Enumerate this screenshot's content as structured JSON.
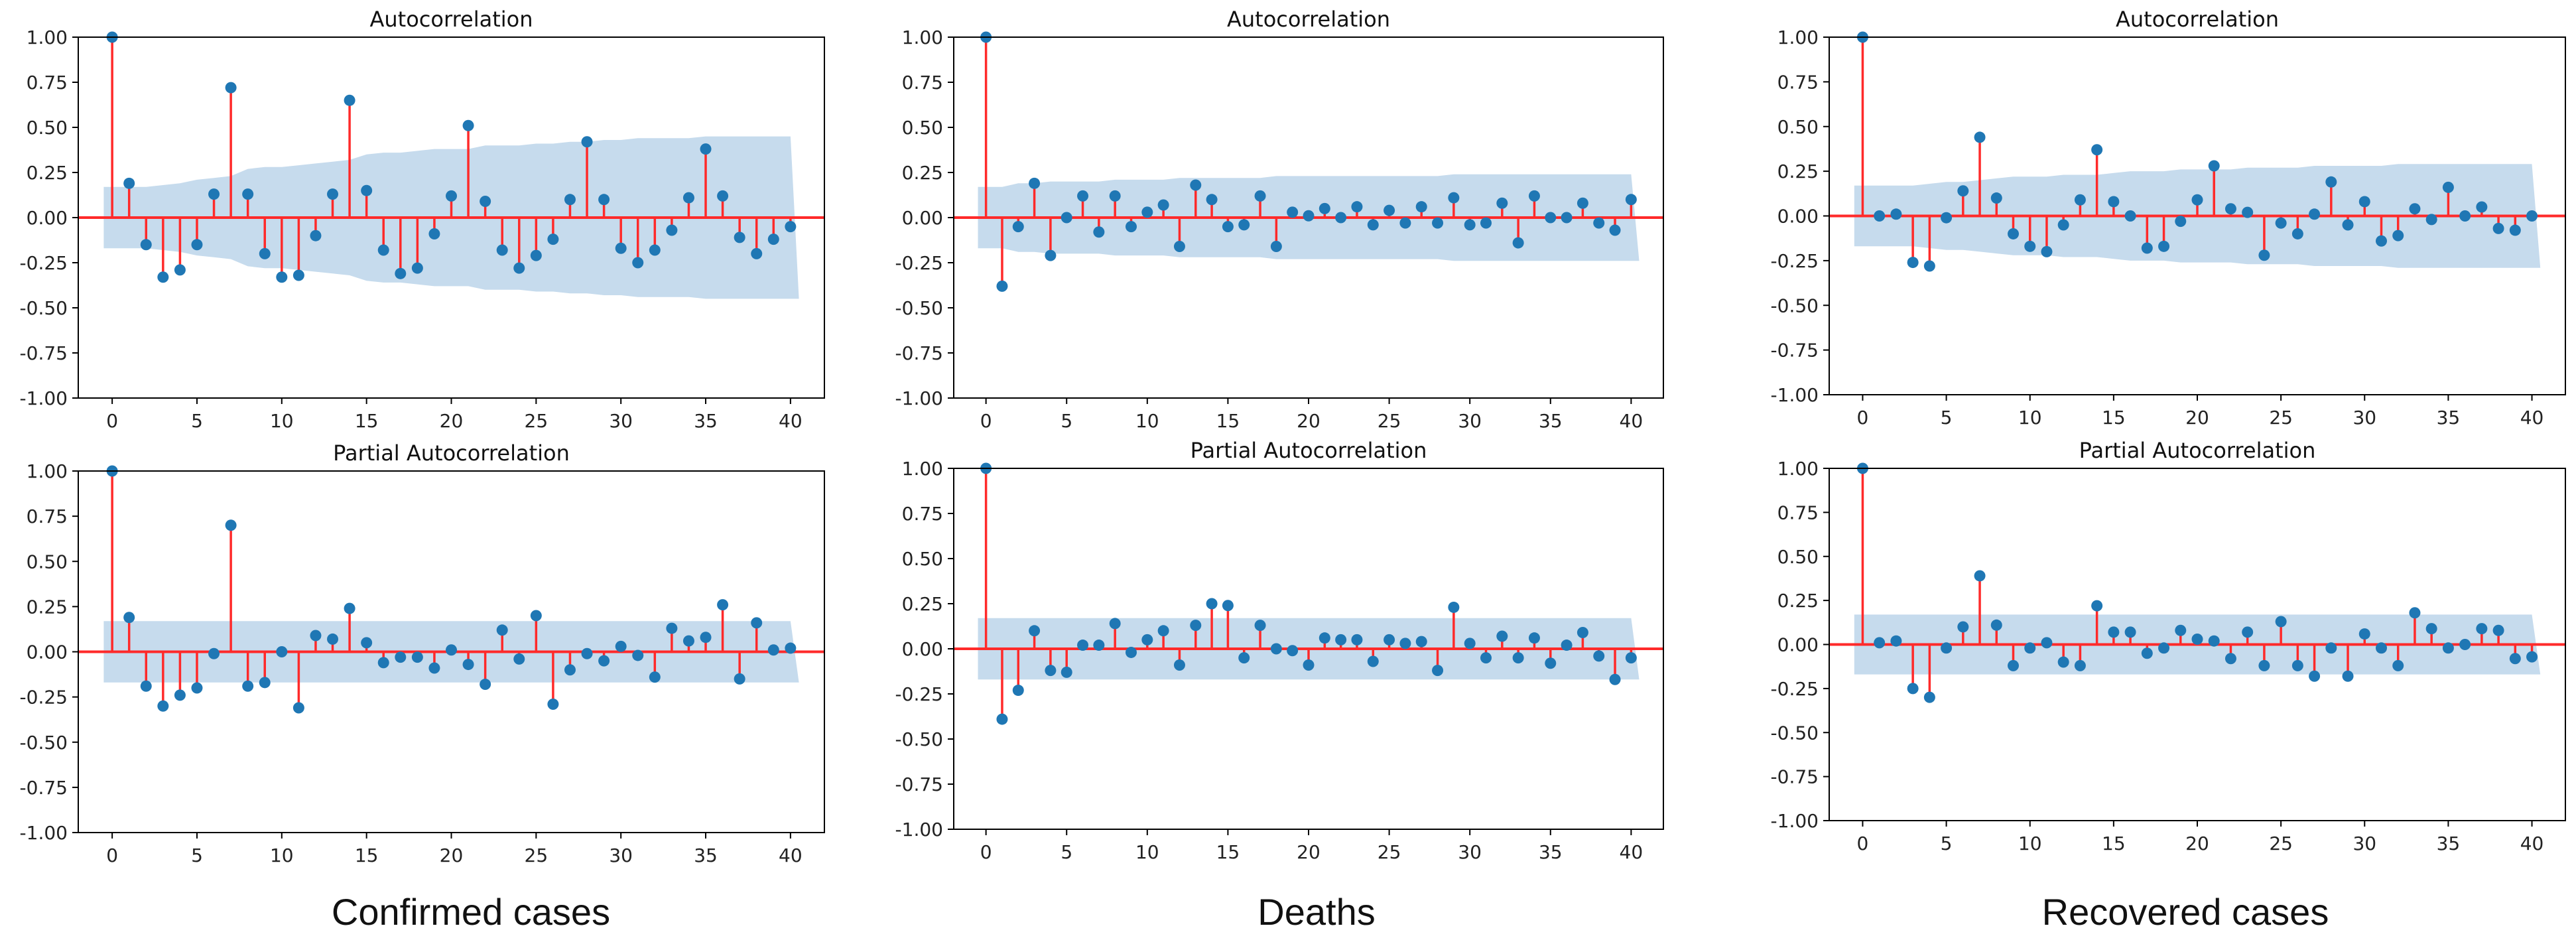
{
  "figure": {
    "columns": [
      "Confirmed cases",
      "Deaths",
      "Recovered cases"
    ]
  },
  "colors": {
    "stem": "#ff2a2a",
    "marker": "#1f77b4",
    "band": "#c6dbed",
    "axis": "#000000",
    "baseline": "#ff2a2a"
  },
  "chart_data": [
    {
      "type": "stem",
      "id": "confirmed-acf",
      "column": "Confirmed cases",
      "title": "Autocorrelation",
      "x": [
        0,
        1,
        2,
        3,
        4,
        5,
        6,
        7,
        8,
        9,
        10,
        11,
        12,
        13,
        14,
        15,
        16,
        17,
        18,
        19,
        20,
        21,
        22,
        23,
        24,
        25,
        26,
        27,
        28,
        29,
        30,
        31,
        32,
        33,
        34,
        35,
        36,
        37,
        38,
        39,
        40
      ],
      "values": [
        1.0,
        0.19,
        -0.15,
        -0.33,
        -0.29,
        -0.15,
        0.13,
        0.72,
        0.13,
        -0.2,
        -0.33,
        -0.32,
        -0.1,
        0.13,
        0.65,
        0.15,
        -0.18,
        -0.31,
        -0.28,
        -0.09,
        0.12,
        0.51,
        0.09,
        -0.18,
        -0.28,
        -0.21,
        -0.12,
        0.1,
        0.42,
        0.1,
        -0.17,
        -0.25,
        -0.18,
        -0.07,
        0.11,
        0.38,
        0.12,
        -0.11,
        -0.2,
        -0.12,
        -0.05
      ],
      "ci_upper": [
        0.17,
        0.17,
        0.17,
        0.18,
        0.19,
        0.21,
        0.22,
        0.23,
        0.27,
        0.28,
        0.28,
        0.29,
        0.3,
        0.31,
        0.32,
        0.35,
        0.36,
        0.36,
        0.37,
        0.38,
        0.38,
        0.38,
        0.4,
        0.4,
        0.4,
        0.41,
        0.41,
        0.42,
        0.42,
        0.43,
        0.43,
        0.44,
        0.44,
        0.44,
        0.44,
        0.45,
        0.45,
        0.45,
        0.45,
        0.45,
        0.45
      ],
      "xlim": [
        -2,
        42
      ],
      "ylim": [
        -1.0,
        1.0
      ],
      "xticks": [
        0,
        5,
        10,
        15,
        20,
        25,
        30,
        35,
        40
      ],
      "yticks": [
        "-1.00",
        "-0.75",
        "-0.50",
        "-0.25",
        "0.00",
        "0.25",
        "0.50",
        "0.75",
        "1.00"
      ]
    },
    {
      "type": "stem",
      "id": "deaths-acf",
      "column": "Deaths",
      "title": "Autocorrelation",
      "x": [
        0,
        1,
        2,
        3,
        4,
        5,
        6,
        7,
        8,
        9,
        10,
        11,
        12,
        13,
        14,
        15,
        16,
        17,
        18,
        19,
        20,
        21,
        22,
        23,
        24,
        25,
        26,
        27,
        28,
        29,
        30,
        31,
        32,
        33,
        34,
        35,
        36,
        37,
        38,
        39,
        40
      ],
      "values": [
        1.0,
        -0.38,
        -0.05,
        0.19,
        -0.21,
        0.0,
        0.12,
        -0.08,
        0.12,
        -0.05,
        0.03,
        0.07,
        -0.16,
        0.18,
        0.1,
        -0.05,
        -0.04,
        0.12,
        -0.16,
        0.03,
        0.01,
        0.05,
        0.0,
        0.06,
        -0.04,
        0.04,
        -0.03,
        0.06,
        -0.03,
        0.11,
        -0.04,
        -0.03,
        0.08,
        -0.14,
        0.12,
        0.0,
        0.0,
        0.08,
        -0.03,
        -0.07,
        0.1
      ],
      "ci_upper": [
        0.17,
        0.17,
        0.19,
        0.19,
        0.2,
        0.2,
        0.2,
        0.2,
        0.21,
        0.21,
        0.21,
        0.21,
        0.22,
        0.22,
        0.22,
        0.22,
        0.22,
        0.22,
        0.23,
        0.23,
        0.23,
        0.23,
        0.23,
        0.23,
        0.23,
        0.23,
        0.23,
        0.23,
        0.23,
        0.24,
        0.24,
        0.24,
        0.24,
        0.24,
        0.24,
        0.24,
        0.24,
        0.24,
        0.24,
        0.24,
        0.24
      ],
      "xlim": [
        -2,
        42
      ],
      "ylim": [
        -1.0,
        1.0
      ],
      "xticks": [
        0,
        5,
        10,
        15,
        20,
        25,
        30,
        35,
        40
      ],
      "yticks": [
        "-1.00",
        "-0.75",
        "-0.50",
        "-0.25",
        "0.00",
        "0.25",
        "0.50",
        "0.75",
        "1.00"
      ]
    },
    {
      "type": "stem",
      "id": "recovered-acf",
      "column": "Recovered cases",
      "title": "Autocorrelation",
      "x": [
        0,
        1,
        2,
        3,
        4,
        5,
        6,
        7,
        8,
        9,
        10,
        11,
        12,
        13,
        14,
        15,
        16,
        17,
        18,
        19,
        20,
        21,
        22,
        23,
        24,
        25,
        26,
        27,
        28,
        29,
        30,
        31,
        32,
        33,
        34,
        35,
        36,
        37,
        38,
        39,
        40
      ],
      "values": [
        1.0,
        0.0,
        0.01,
        -0.26,
        -0.28,
        -0.01,
        0.14,
        0.44,
        0.1,
        -0.1,
        -0.17,
        -0.2,
        -0.05,
        0.09,
        0.37,
        0.08,
        0.0,
        -0.18,
        -0.17,
        -0.03,
        0.09,
        0.28,
        0.04,
        0.02,
        -0.22,
        -0.04,
        -0.1,
        0.01,
        0.19,
        -0.05,
        0.08,
        -0.14,
        -0.11,
        0.04,
        -0.02,
        0.16,
        0.0,
        0.05,
        -0.07,
        -0.08,
        0.0
      ],
      "ci_upper": [
        0.17,
        0.17,
        0.17,
        0.17,
        0.18,
        0.19,
        0.19,
        0.2,
        0.21,
        0.22,
        0.22,
        0.22,
        0.23,
        0.23,
        0.23,
        0.24,
        0.25,
        0.25,
        0.25,
        0.26,
        0.26,
        0.26,
        0.26,
        0.27,
        0.27,
        0.27,
        0.27,
        0.28,
        0.28,
        0.28,
        0.28,
        0.28,
        0.29,
        0.29,
        0.29,
        0.29,
        0.29,
        0.29,
        0.29,
        0.29,
        0.29
      ],
      "xlim": [
        -2,
        42
      ],
      "ylim": [
        -1.0,
        1.0
      ],
      "xticks": [
        0,
        5,
        10,
        15,
        20,
        25,
        30,
        35,
        40
      ],
      "yticks": [
        "-1.00",
        "-0.75",
        "-0.50",
        "-0.25",
        "0.00",
        "0.25",
        "0.50",
        "0.75",
        "1.00"
      ]
    },
    {
      "type": "stem",
      "id": "confirmed-pacf",
      "column": "Confirmed cases",
      "title": "Partial Autocorrelation",
      "x": [
        0,
        1,
        2,
        3,
        4,
        5,
        6,
        7,
        8,
        9,
        10,
        11,
        12,
        13,
        14,
        15,
        16,
        17,
        18,
        19,
        20,
        21,
        22,
        23,
        24,
        25,
        26,
        27,
        28,
        29,
        30,
        31,
        32,
        33,
        34,
        35,
        36,
        37,
        38,
        39,
        40
      ],
      "values": [
        1.0,
        0.19,
        -0.19,
        -0.3,
        -0.24,
        -0.2,
        -0.01,
        0.7,
        -0.19,
        -0.17,
        0.0,
        -0.31,
        0.09,
        0.07,
        0.24,
        0.05,
        -0.06,
        -0.03,
        -0.03,
        -0.09,
        0.01,
        -0.07,
        -0.18,
        0.12,
        -0.04,
        0.2,
        -0.29,
        -0.1,
        -0.01,
        -0.05,
        0.03,
        -0.02,
        -0.14,
        0.13,
        0.06,
        0.08,
        0.26,
        -0.15,
        0.16,
        0.01,
        0.02
      ],
      "ci_upper": 0.17,
      "xlim": [
        -2,
        42
      ],
      "ylim": [
        -1.0,
        1.0
      ],
      "xticks": [
        0,
        5,
        10,
        15,
        20,
        25,
        30,
        35,
        40
      ],
      "yticks": [
        "-1.00",
        "-0.75",
        "-0.50",
        "-0.25",
        "0.00",
        "0.25",
        "0.50",
        "0.75",
        "1.00"
      ]
    },
    {
      "type": "stem",
      "id": "deaths-pacf",
      "column": "Deaths",
      "title": "Partial Autocorrelation",
      "x": [
        0,
        1,
        2,
        3,
        4,
        5,
        6,
        7,
        8,
        9,
        10,
        11,
        12,
        13,
        14,
        15,
        16,
        17,
        18,
        19,
        20,
        21,
        22,
        23,
        24,
        25,
        26,
        27,
        28,
        29,
        30,
        31,
        32,
        33,
        34,
        35,
        36,
        37,
        38,
        39,
        40
      ],
      "values": [
        1.0,
        -0.39,
        -0.23,
        0.1,
        -0.12,
        -0.13,
        0.02,
        0.02,
        0.14,
        -0.02,
        0.05,
        0.1,
        -0.09,
        0.13,
        0.25,
        0.24,
        -0.05,
        0.13,
        0.0,
        -0.01,
        -0.09,
        0.06,
        0.05,
        0.05,
        -0.07,
        0.05,
        0.03,
        0.04,
        -0.12,
        0.23,
        0.03,
        -0.05,
        0.07,
        -0.05,
        0.06,
        -0.08,
        0.02,
        0.09,
        -0.04,
        -0.17,
        -0.05
      ],
      "ci_upper": 0.17,
      "xlim": [
        -2,
        42
      ],
      "ylim": [
        -1.0,
        1.0
      ],
      "xticks": [
        0,
        5,
        10,
        15,
        20,
        25,
        30,
        35,
        40
      ],
      "yticks": [
        "-1.00",
        "-0.75",
        "-0.50",
        "-0.25",
        "0.00",
        "0.25",
        "0.50",
        "0.75",
        "1.00"
      ]
    },
    {
      "type": "stem",
      "id": "recovered-pacf",
      "column": "Recovered cases",
      "title": "Partial Autocorrelation",
      "x": [
        0,
        1,
        2,
        3,
        4,
        5,
        6,
        7,
        8,
        9,
        10,
        11,
        12,
        13,
        14,
        15,
        16,
        17,
        18,
        19,
        20,
        21,
        22,
        23,
        24,
        25,
        26,
        27,
        28,
        29,
        30,
        31,
        32,
        33,
        34,
        35,
        36,
        37,
        38,
        39,
        40
      ],
      "values": [
        1.0,
        0.01,
        0.02,
        -0.25,
        -0.3,
        -0.02,
        0.1,
        0.39,
        0.11,
        -0.12,
        -0.02,
        0.01,
        -0.1,
        -0.12,
        0.22,
        0.07,
        0.07,
        -0.05,
        -0.02,
        0.08,
        0.03,
        0.02,
        -0.08,
        0.07,
        -0.12,
        0.13,
        -0.12,
        -0.18,
        -0.02,
        -0.18,
        0.06,
        -0.02,
        -0.12,
        0.18,
        0.09,
        -0.02,
        0.0,
        0.09,
        0.08,
        -0.08,
        -0.07
      ],
      "ci_upper": 0.17,
      "xlim": [
        -2,
        42
      ],
      "ylim": [
        -1.0,
        1.0
      ],
      "xticks": [
        0,
        5,
        10,
        15,
        20,
        25,
        30,
        35,
        40
      ],
      "yticks": [
        "-1.00",
        "-0.75",
        "-0.50",
        "-0.25",
        "0.00",
        "0.25",
        "0.50",
        "0.75",
        "1.00"
      ]
    }
  ]
}
